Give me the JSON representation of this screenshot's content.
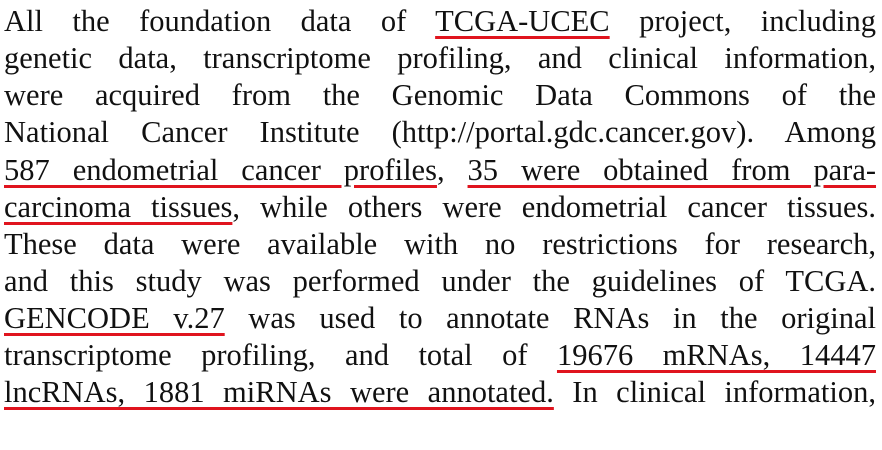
{
  "document": {
    "highlight_color": "#e0141e",
    "lines": [
      {
        "pre": "All the foundation data of ",
        "hl": "TCGA-UCEC",
        "post": " project, including"
      },
      {
        "pre": "genetic data, transcriptome profiling, and clinical information,"
      },
      {
        "pre": "were acquired from the Genomic Data Commons of the"
      },
      {
        "pre": "National Cancer Institute (http://portal.gdc.cancer.gov). Among"
      },
      {
        "pre": "",
        "hl": "587 endometrial cancer profiles",
        "mid": ", ",
        "hl2": "35 were obtained from para-"
      },
      {
        "pre": "",
        "hl": "carcinoma tissues",
        "post": ", while others were endometrial cancer tissues."
      },
      {
        "pre": "These data were available with no restrictions for research,"
      },
      {
        "pre": "and this study was performed under the guidelines of TCGA."
      },
      {
        "pre": "",
        "hl": "GENCODE v.27",
        "post": " was used to annotate RNAs in the original"
      },
      {
        "pre": "transcriptome profiling, and total of ",
        "hl": "19676 mRNAs, 14447"
      },
      {
        "pre": "",
        "hl": "lncRNAs, 1881 miRNAs were annotated.",
        "post": " In clinical information,"
      }
    ]
  }
}
